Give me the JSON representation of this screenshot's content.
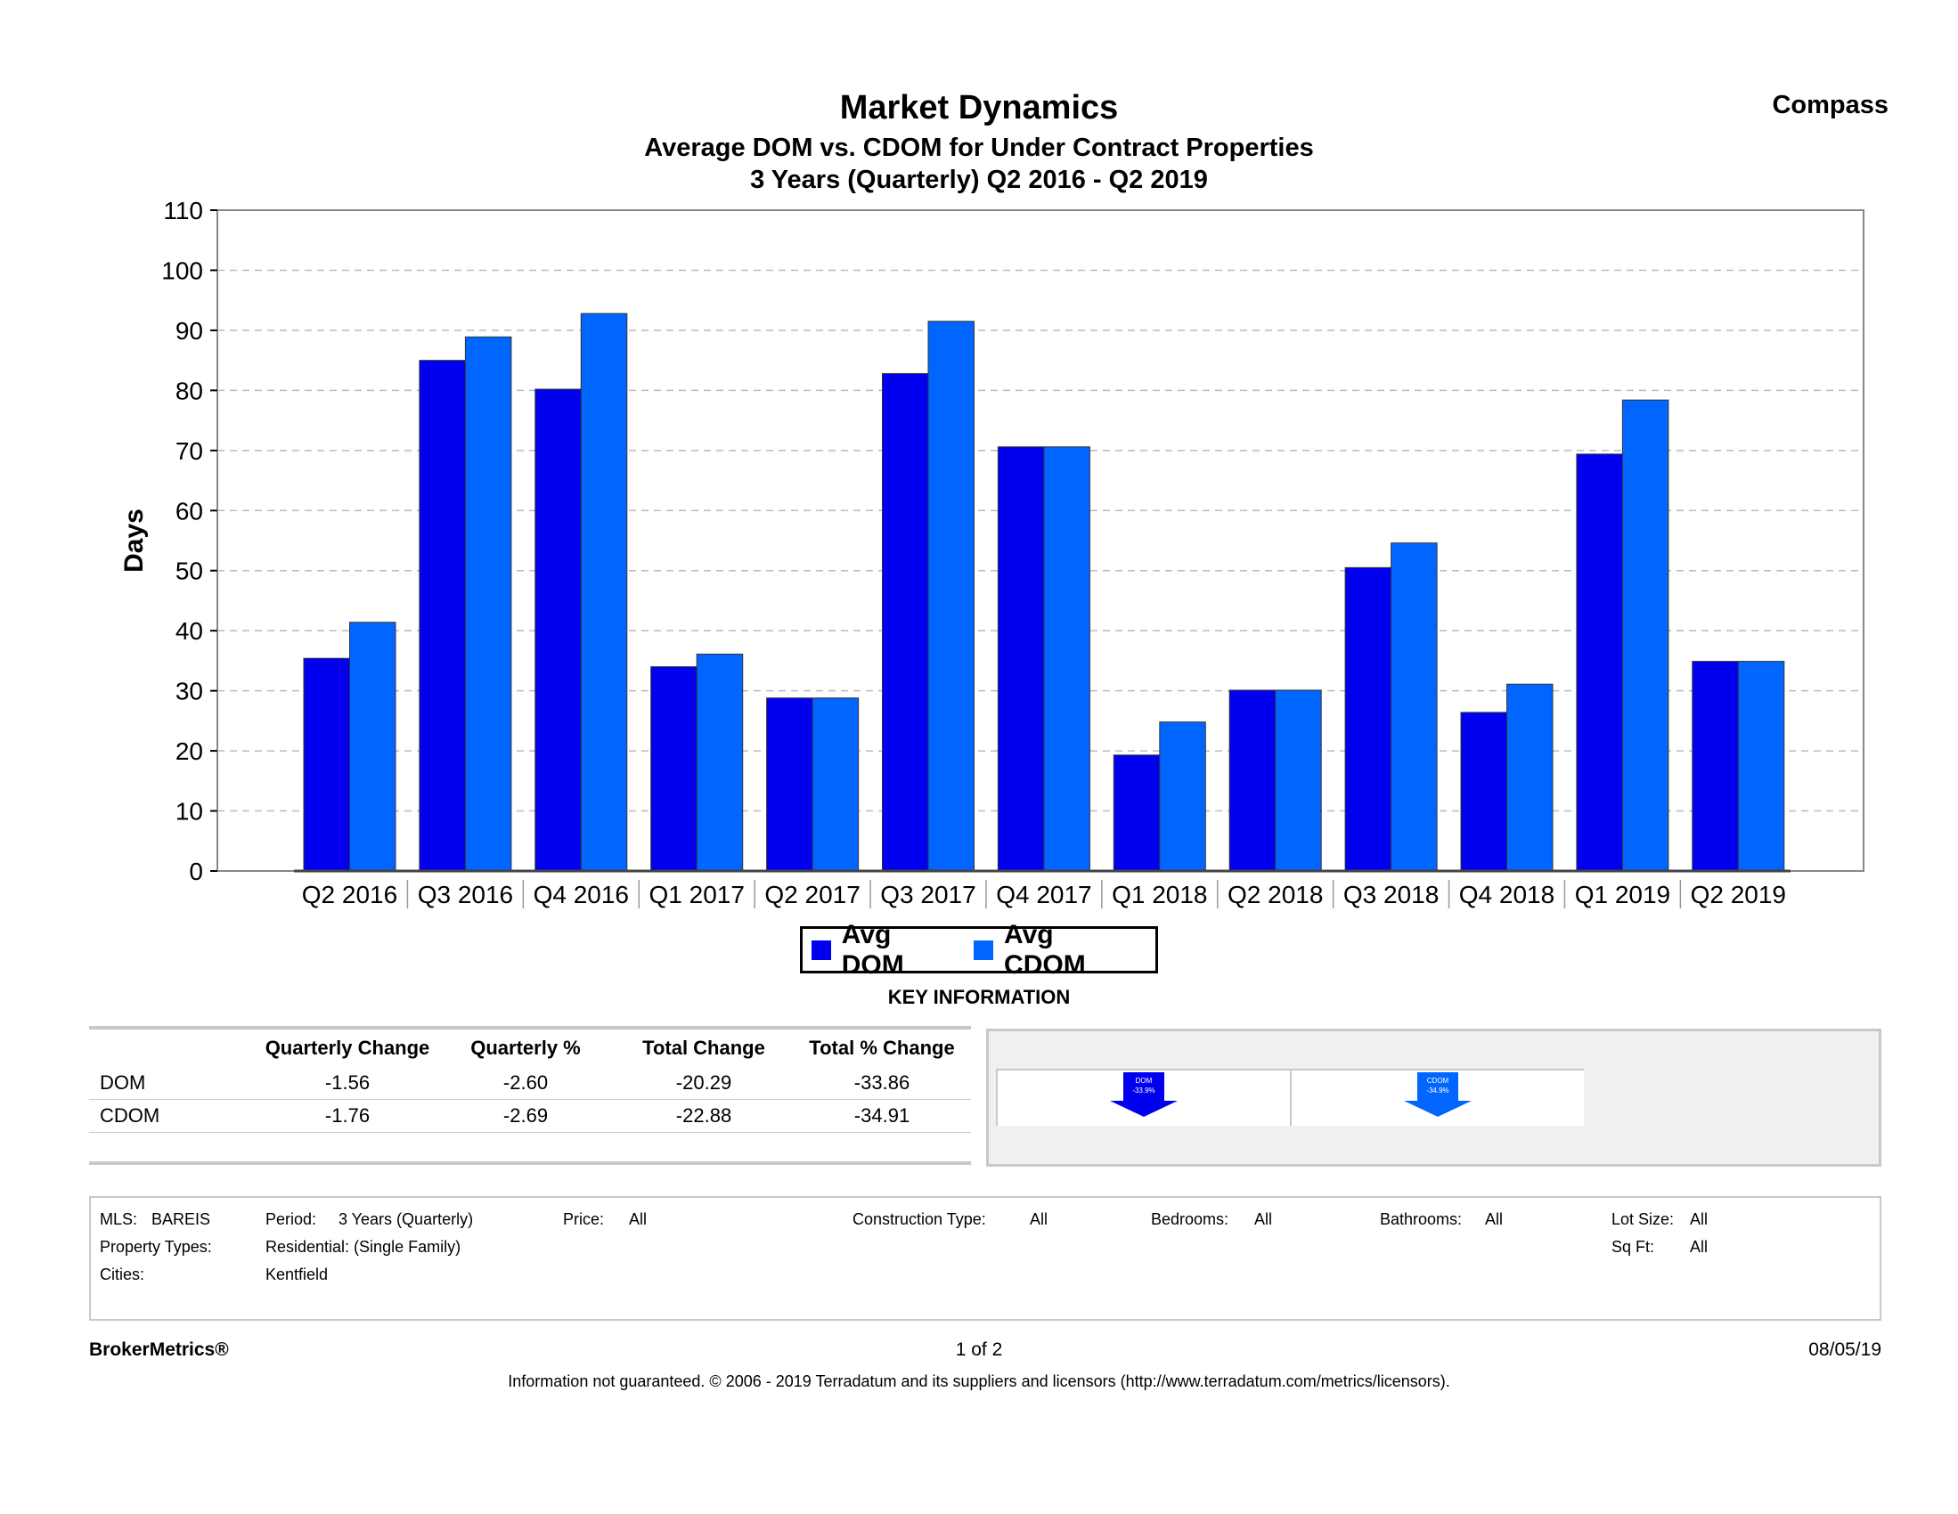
{
  "header": {
    "title": "Market Dynamics",
    "subtitle": "Average DOM vs. CDOM for Under Contract Properties",
    "period": "3 Years (Quarterly) Q2 2016 - Q2 2019",
    "brand": "Compass"
  },
  "colors": {
    "dom": "#0000ee",
    "cdom": "#0066ff",
    "grid": "#bbbbbb"
  },
  "chart_data": {
    "type": "bar",
    "title": "Market Dynamics",
    "xlabel": "",
    "ylabel": "Days",
    "ylim": [
      0,
      110
    ],
    "yticks": [
      0,
      10,
      20,
      30,
      40,
      50,
      60,
      70,
      80,
      90,
      100,
      110
    ],
    "grid": true,
    "legend_position": "bottom-center",
    "categories": [
      "Q2 2016",
      "Q3 2016",
      "Q4 2016",
      "Q1 2017",
      "Q2 2017",
      "Q3 2017",
      "Q4 2017",
      "Q1 2018",
      "Q2 2018",
      "Q3 2018",
      "Q4 2018",
      "Q1 2019",
      "Q2 2019"
    ],
    "series": [
      {
        "name": "Avg DOM",
        "values": [
          35.4,
          85.0,
          80.2,
          34.0,
          28.8,
          82.8,
          70.6,
          19.3,
          30.1,
          50.5,
          26.4,
          69.4,
          34.9
        ]
      },
      {
        "name": "Avg CDOM",
        "values": [
          41.4,
          88.9,
          92.8,
          36.1,
          28.8,
          91.5,
          70.6,
          24.8,
          30.1,
          54.6,
          31.1,
          78.4,
          34.9
        ]
      }
    ]
  },
  "legend": {
    "dom": "Avg DOM",
    "cdom": "Avg CDOM"
  },
  "key_info": {
    "title": "KEY INFORMATION",
    "headers": [
      "Quarterly Change",
      "Quarterly %",
      "Total Change",
      "Total % Change"
    ],
    "rows": [
      {
        "label": "DOM",
        "values": [
          "-1.56",
          "-2.60",
          "-20.29",
          "-33.86"
        ]
      },
      {
        "label": "CDOM",
        "values": [
          "-1.76",
          "-2.69",
          "-22.88",
          "-34.91"
        ]
      }
    ],
    "indicators": [
      {
        "label": "DOM",
        "value": "-33.9%"
      },
      {
        "label": "CDOM",
        "value": "-34.9%"
      }
    ]
  },
  "filters": {
    "mls_label": "MLS:",
    "mls_value": "BAREIS",
    "period_label": "Period:",
    "period_value": "3 Years (Quarterly)",
    "price_label": "Price:",
    "price_value": "All",
    "construction_label": "Construction Type:",
    "construction_value": "All",
    "bedrooms_label": "Bedrooms:",
    "bedrooms_value": "All",
    "bathrooms_label": "Bathrooms:",
    "bathrooms_value": "All",
    "lotsize_label": "Lot Size:",
    "lotsize_value": "All",
    "property_types_label": "Property Types:",
    "property_types_value": "Residential: (Single Family)",
    "sqft_label": "Sq Ft:",
    "sqft_value": "All",
    "cities_label": "Cities:",
    "cities_value": "Kentfield"
  },
  "footer": {
    "brand": "BrokerMetrics®",
    "page": "1 of 2",
    "date": "08/05/19",
    "disclaimer": "Information not guaranteed.  © 2006 - 2019 Terradatum and its suppliers and licensors (http://www.terradatum.com/metrics/licensors)."
  }
}
